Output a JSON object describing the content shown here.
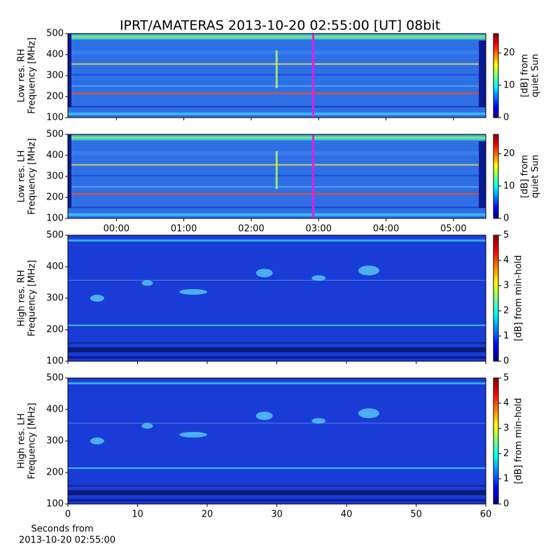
{
  "chart_data": [
    {
      "type": "heatmap",
      "title": "IPRT/AMATERAS 2013-10-20 02:55:00 [UT]   08bit",
      "ylabel": [
        "Low res. RH",
        "Frequency [MHz]"
      ],
      "ylim": [
        100,
        500
      ],
      "yticks": [
        100,
        200,
        300,
        400,
        500
      ],
      "xlim": [
        -0.72,
        5.48
      ],
      "xticks": [
        0,
        1,
        2,
        3,
        4,
        5
      ],
      "cursor": {
        "x": 2.92,
        "color": "#e020e0"
      },
      "colorbar": {
        "label": [
          "[dB] from",
          "quiet Sun"
        ],
        "lim": [
          0,
          26
        ],
        "ticks": [
          0,
          10,
          20
        ]
      }
    },
    {
      "type": "heatmap",
      "ylabel": [
        "Low res. LH",
        "Frequency [MHz]"
      ],
      "ylim": [
        100,
        500
      ],
      "yticks": [
        100,
        200,
        300,
        400,
        500
      ],
      "xlim": [
        -0.72,
        5.48
      ],
      "xticks": [
        {
          "value": 0,
          "label": "00:00"
        },
        {
          "value": 1,
          "label": "01:00"
        },
        {
          "value": 2,
          "label": "02:00"
        },
        {
          "value": 3,
          "label": "03:00"
        },
        {
          "value": 4,
          "label": "04:00"
        },
        {
          "value": 5,
          "label": "05:00"
        }
      ],
      "cursor": {
        "x": 2.92,
        "color": "#e020e0"
      },
      "colorbar": {
        "label": [
          "[dB] from",
          "quiet Sun"
        ],
        "lim": [
          0,
          26
        ],
        "ticks": [
          0,
          10,
          20
        ]
      }
    },
    {
      "type": "heatmap",
      "ylabel": [
        "High res. RH",
        "Frequency [MHz]"
      ],
      "ylim": [
        100,
        500
      ],
      "yticks": [
        100,
        200,
        300,
        400,
        500
      ],
      "xlim": [
        0,
        60
      ],
      "xticks": [
        0,
        10,
        20,
        30,
        40,
        50,
        60
      ],
      "colorbar": {
        "label": [
          "[dB] from min-hold"
        ],
        "lim": [
          0,
          5
        ],
        "ticks": [
          0,
          1,
          2,
          3,
          4,
          5
        ]
      }
    },
    {
      "type": "heatmap",
      "ylabel": [
        "High res. LH",
        "Frequency [MHz]"
      ],
      "ylim": [
        100,
        500
      ],
      "yticks": [
        100,
        200,
        300,
        400,
        500
      ],
      "xlim": [
        0,
        60
      ],
      "xticks": [
        0,
        10,
        20,
        30,
        40,
        50,
        60
      ],
      "xlabel": [
        "Seconds from",
        "2013-10-20 02:55:00"
      ],
      "colorbar": {
        "label": [
          "[dB] from min-hold"
        ],
        "lim": [
          0,
          5
        ],
        "ticks": [
          0,
          1,
          2,
          3,
          4,
          5
        ]
      }
    }
  ]
}
